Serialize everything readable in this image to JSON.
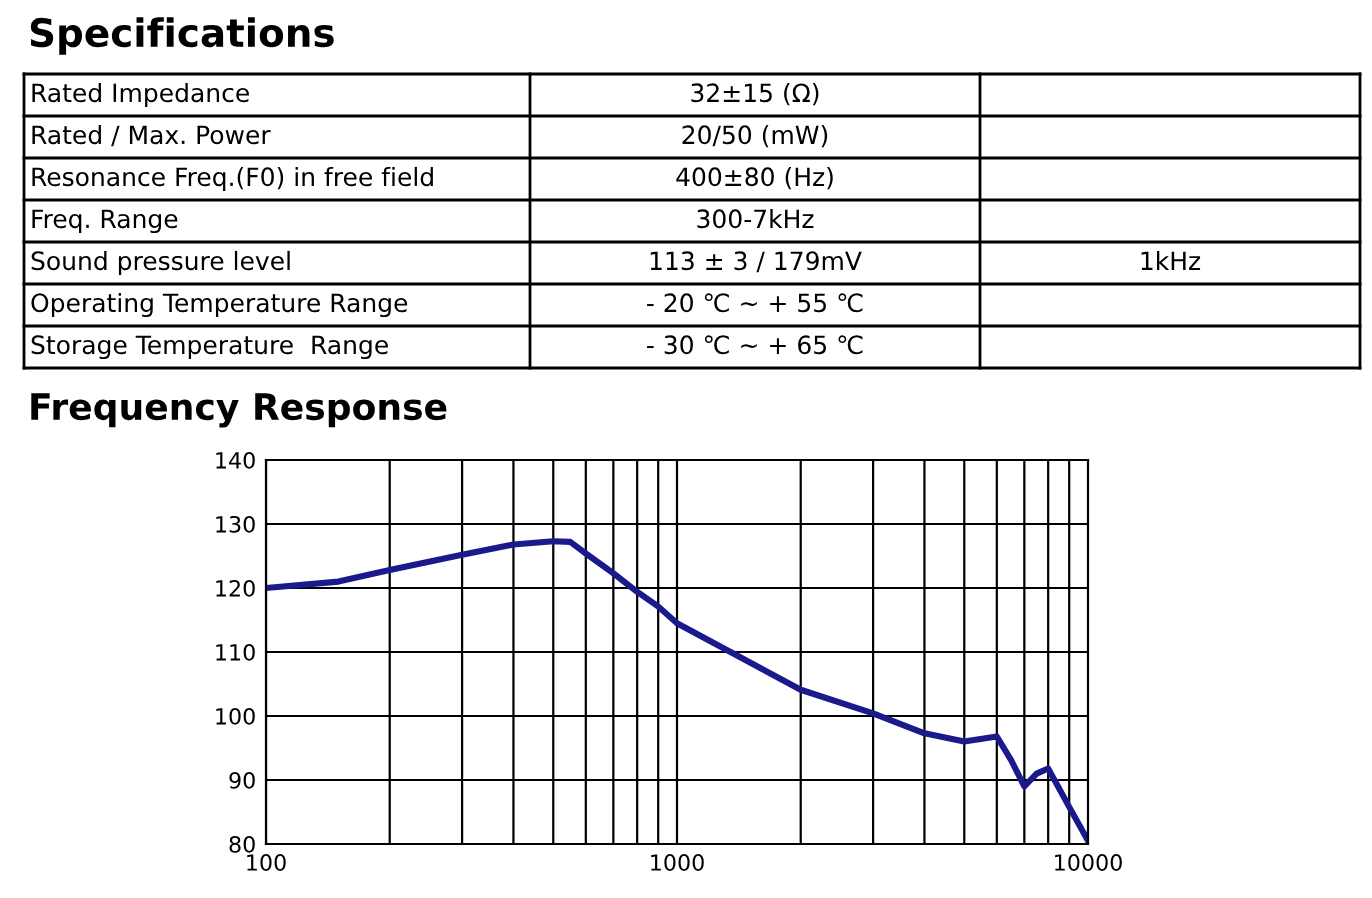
{
  "chart_data": [
    {
      "type": "other",
      "title": "Specifications",
      "annotations": [
        "Rated Impedance",
        "Rated / Max. Power",
        "Resonance Freq.(F0) in free field",
        "Freq. Range",
        "Sound pressure level",
        "Operating Temperature Range",
        "Storage Temperature  Range",
        "32±15 (Ω)",
        "20/50 (mW)",
        "400±80 (Hz)",
        "300-7kHz",
        "113 ± 3 / 179mV",
        "- 20 ℃ ~ + 55 ℃",
        "- 30 ℃ ~ + 65 ℃",
        "1kHz"
      ]
    },
    {
      "type": "line",
      "title": "Frequency Response",
      "color": "#1a1a8c",
      "x": [
        100,
        150,
        200,
        300,
        400,
        500,
        550,
        600,
        700,
        800,
        900,
        1000,
        2000,
        3000,
        4000,
        5000,
        6000,
        6500,
        7000,
        7500,
        8000,
        9000,
        10000
      ],
      "values": [
        120,
        121,
        122.8,
        125.2,
        126.8,
        127.3,
        127.2,
        125.4,
        122.3,
        119.4,
        117.1,
        114.5,
        104.1,
        100.4,
        97.3,
        96,
        96.8,
        93.1,
        89,
        91,
        91.8,
        85.8,
        80.5
      ],
      "log": "x",
      "xlim": [
        100,
        10000
      ],
      "xticks": [
        100,
        1000,
        10000
      ],
      "ylim": [
        80,
        140
      ],
      "yticks": [
        80,
        90,
        100,
        110,
        120,
        130,
        140
      ],
      "grid": true
    }
  ]
}
